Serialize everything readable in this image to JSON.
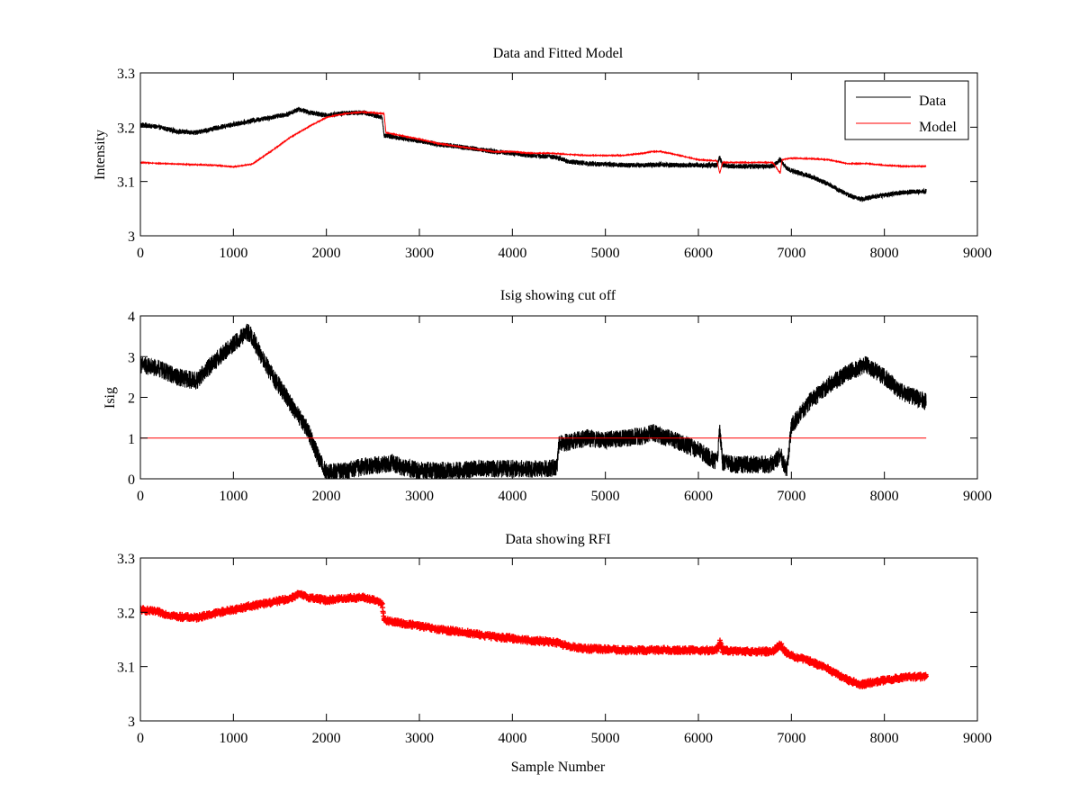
{
  "chart_data": [
    {
      "type": "line",
      "title": "Data and Fitted Model",
      "xlabel": "",
      "ylabel": "Intensity",
      "xlim": [
        0,
        9000
      ],
      "ylim": [
        3,
        3.3
      ],
      "xticks": [
        0,
        1000,
        2000,
        3000,
        4000,
        5000,
        6000,
        7000,
        8000,
        9000
      ],
      "xtick_labels": [
        "0",
        "1000",
        "2000",
        "3000",
        "4000",
        "5000",
        "6000",
        "7000",
        "8000",
        "9000"
      ],
      "yticks": [
        3,
        3.1,
        3.2,
        3.3
      ],
      "ytick_labels": [
        "3",
        "3.1",
        "3.2",
        "3.3"
      ],
      "grid": false,
      "legend": "top-right",
      "series": [
        {
          "name": "Data",
          "color": "#000000",
          "noise": 0.0045,
          "x": [
            0,
            200,
            400,
            600,
            800,
            1000,
            1200,
            1400,
            1600,
            1700,
            1800,
            2000,
            2200,
            2400,
            2600,
            2620,
            2800,
            3000,
            3200,
            3400,
            3600,
            3800,
            4000,
            4200,
            4400,
            4500,
            4600,
            4800,
            5000,
            5200,
            5400,
            5600,
            5800,
            6000,
            6200,
            6230,
            6260,
            6400,
            6600,
            6800,
            6880,
            6950,
            7000,
            7200,
            7400,
            7600,
            7750,
            7900,
            8000,
            8200,
            8450
          ],
          "y": [
            3.205,
            3.2,
            3.192,
            3.19,
            3.198,
            3.205,
            3.212,
            3.218,
            3.225,
            3.233,
            3.228,
            3.222,
            3.226,
            3.227,
            3.218,
            3.185,
            3.18,
            3.175,
            3.168,
            3.165,
            3.16,
            3.155,
            3.152,
            3.148,
            3.146,
            3.143,
            3.137,
            3.133,
            3.132,
            3.13,
            3.13,
            3.131,
            3.13,
            3.13,
            3.13,
            3.145,
            3.13,
            3.128,
            3.128,
            3.128,
            3.14,
            3.125,
            3.12,
            3.11,
            3.095,
            3.076,
            3.067,
            3.072,
            3.075,
            3.08,
            3.082
          ]
        },
        {
          "name": "Model",
          "color": "#ff0000",
          "noise": 0.0006,
          "x": [
            0,
            400,
            800,
            1000,
            1200,
            1400,
            1600,
            1800,
            2000,
            2200,
            2400,
            2620,
            2640,
            3000,
            3200,
            3400,
            3600,
            3800,
            4000,
            4200,
            4400,
            4600,
            4800,
            5000,
            5200,
            5400,
            5500,
            5600,
            5800,
            6000,
            6200,
            6230,
            6260,
            6400,
            6600,
            6800,
            6880,
            6900,
            7000,
            7200,
            7400,
            7600,
            7800,
            8000,
            8200,
            8450
          ],
          "y": [
            3.135,
            3.132,
            3.13,
            3.127,
            3.132,
            3.155,
            3.18,
            3.2,
            3.218,
            3.225,
            3.228,
            3.225,
            3.19,
            3.178,
            3.17,
            3.165,
            3.16,
            3.155,
            3.155,
            3.152,
            3.152,
            3.15,
            3.148,
            3.148,
            3.148,
            3.152,
            3.155,
            3.155,
            3.148,
            3.14,
            3.138,
            3.115,
            3.135,
            3.135,
            3.135,
            3.135,
            3.115,
            3.14,
            3.143,
            3.142,
            3.14,
            3.133,
            3.133,
            3.13,
            3.128,
            3.128
          ]
        }
      ]
    },
    {
      "type": "line",
      "title": "Isig showing cut off",
      "xlabel": "",
      "ylabel": "Isig",
      "xlim": [
        0,
        9000
      ],
      "ylim": [
        0,
        4
      ],
      "xticks": [
        0,
        1000,
        2000,
        3000,
        4000,
        5000,
        6000,
        7000,
        8000,
        9000
      ],
      "xtick_labels": [
        "0",
        "1000",
        "2000",
        "3000",
        "4000",
        "5000",
        "6000",
        "7000",
        "8000",
        "9000"
      ],
      "yticks": [
        0,
        1,
        2,
        3,
        4
      ],
      "ytick_labels": [
        "0",
        "1",
        "2",
        "3",
        "4"
      ],
      "grid": false,
      "series": [
        {
          "color": "#000000",
          "noise": 0.22,
          "x": [
            0,
            200,
            400,
            600,
            800,
            1000,
            1100,
            1150,
            1200,
            1300,
            1400,
            1600,
            1800,
            1900,
            2000,
            2200,
            2400,
            2600,
            2700,
            2800,
            3000,
            3200,
            3400,
            3600,
            3800,
            4000,
            4200,
            4400,
            4480,
            4500,
            4600,
            4800,
            5000,
            5200,
            5400,
            5500,
            5600,
            5800,
            6000,
            6200,
            6230,
            6260,
            6400,
            6600,
            6800,
            6880,
            6950,
            7000,
            7200,
            7400,
            7600,
            7800,
            8000,
            8200,
            8450
          ],
          "y": [
            2.8,
            2.7,
            2.5,
            2.4,
            2.9,
            3.3,
            3.5,
            3.6,
            3.5,
            3.0,
            2.6,
            1.9,
            1.2,
            0.6,
            0.15,
            0.2,
            0.3,
            0.35,
            0.4,
            0.3,
            0.2,
            0.2,
            0.2,
            0.25,
            0.25,
            0.25,
            0.25,
            0.25,
            0.3,
            0.85,
            0.9,
            1.0,
            0.95,
            1.0,
            1.05,
            1.15,
            1.05,
            0.9,
            0.7,
            0.4,
            1.2,
            0.4,
            0.35,
            0.35,
            0.35,
            0.6,
            0.2,
            1.3,
            1.9,
            2.3,
            2.6,
            2.8,
            2.5,
            2.1,
            1.9
          ]
        },
        {
          "color": "#ff0000",
          "noise": 0,
          "x": [
            0,
            8450
          ],
          "y": [
            1,
            1
          ]
        }
      ]
    },
    {
      "type": "scatter",
      "title": "Data showing RFI",
      "xlabel": "Sample Number",
      "ylabel": "",
      "xlim": [
        0,
        9000
      ],
      "ylim": [
        3,
        3.3
      ],
      "xticks": [
        0,
        1000,
        2000,
        3000,
        4000,
        5000,
        6000,
        7000,
        8000,
        9000
      ],
      "xtick_labels": [
        "0",
        "1000",
        "2000",
        "3000",
        "4000",
        "5000",
        "6000",
        "7000",
        "8000",
        "9000"
      ],
      "yticks": [
        3,
        3.1,
        3.2,
        3.3
      ],
      "ytick_labels": [
        "3",
        "3.1",
        "3.2",
        "3.3"
      ],
      "grid": false,
      "series": [
        {
          "color": "#ff0000",
          "marker": "plus",
          "noise": 0.0045,
          "x": [
            0,
            200,
            400,
            600,
            800,
            1000,
            1200,
            1400,
            1600,
            1700,
            1800,
            2000,
            2200,
            2400,
            2600,
            2620,
            2800,
            3000,
            3200,
            3400,
            3600,
            3800,
            4000,
            4200,
            4400,
            4500,
            4600,
            4800,
            5000,
            5200,
            5400,
            5600,
            5800,
            6000,
            6200,
            6230,
            6260,
            6400,
            6600,
            6800,
            6880,
            6950,
            7000,
            7200,
            7400,
            7600,
            7750,
            7900,
            8000,
            8200,
            8450
          ],
          "y": [
            3.205,
            3.2,
            3.192,
            3.19,
            3.198,
            3.205,
            3.212,
            3.218,
            3.225,
            3.233,
            3.228,
            3.222,
            3.226,
            3.227,
            3.218,
            3.185,
            3.18,
            3.175,
            3.168,
            3.165,
            3.16,
            3.155,
            3.152,
            3.148,
            3.146,
            3.143,
            3.137,
            3.133,
            3.132,
            3.13,
            3.13,
            3.131,
            3.13,
            3.13,
            3.13,
            3.145,
            3.13,
            3.128,
            3.128,
            3.128,
            3.14,
            3.125,
            3.12,
            3.11,
            3.095,
            3.076,
            3.067,
            3.072,
            3.075,
            3.08,
            3.082
          ]
        }
      ]
    }
  ]
}
